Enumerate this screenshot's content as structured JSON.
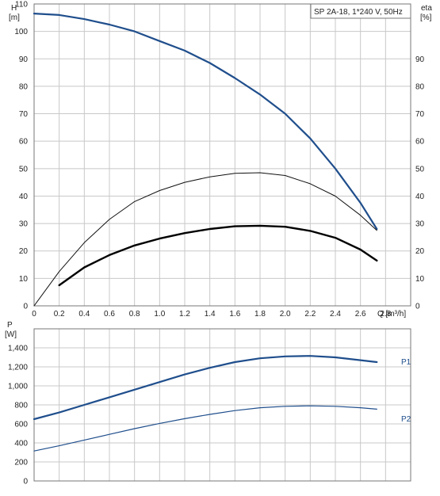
{
  "chart_data": [
    {
      "type": "line",
      "title": "SP 2A-18, 1*240 V, 50Hz",
      "grid": true,
      "ylabel_left": "H",
      "ylabel_left_unit": "[m]",
      "ylabel_right": "eta",
      "ylabel_right_unit": "[%]",
      "xlabel": "Q [m³/h]",
      "xlim": [
        0,
        3.0
      ],
      "ylim": [
        0,
        110
      ],
      "x_ticks": [
        "0",
        "0.2",
        "0.4",
        "0.6",
        "0.8",
        "1.0",
        "1.2",
        "1.4",
        "1.6",
        "1.8",
        "2.0",
        "2.2",
        "2.4",
        "2.6",
        "2.8"
      ],
      "y_ticks_left": [
        "0",
        "10",
        "20",
        "30",
        "40",
        "50",
        "60",
        "70",
        "80",
        "90",
        "100",
        "110"
      ],
      "y_ticks_right": [
        "0",
        "10",
        "20",
        "30",
        "40",
        "50",
        "60",
        "70",
        "80",
        "90"
      ],
      "series": [
        {
          "color": "#1f4e8c",
          "x": [
            0,
            0.2,
            0.4,
            0.6,
            0.8,
            1.0,
            1.2,
            1.4,
            1.6,
            1.8,
            2.0,
            2.2,
            2.4,
            2.6,
            2.73
          ],
          "values": [
            106.5,
            106,
            104.5,
            102.5,
            100,
            96.5,
            93,
            88.5,
            83,
            77,
            70,
            61,
            50,
            37.5,
            28
          ]
        },
        {
          "color": "#111111",
          "x": [
            0,
            0.2,
            0.4,
            0.6,
            0.8,
            1.0,
            1.2,
            1.4,
            1.6,
            1.8,
            2.0,
            2.2,
            2.4,
            2.6,
            2.73
          ],
          "values": [
            0,
            12.5,
            23,
            31.5,
            38,
            42,
            45,
            47,
            48.3,
            48.5,
            47.5,
            44.5,
            40,
            33,
            27.5
          ]
        },
        {
          "color": "#000000",
          "x": [
            0.2,
            0.4,
            0.6,
            0.8,
            1.0,
            1.2,
            1.4,
            1.6,
            1.8,
            2.0,
            2.2,
            2.4,
            2.6,
            2.73
          ],
          "values": [
            7.5,
            14,
            18.5,
            22,
            24.5,
            26.5,
            28,
            29,
            29.2,
            28.8,
            27.3,
            24.8,
            20.5,
            16.5
          ]
        }
      ]
    },
    {
      "type": "line",
      "grid": true,
      "ylabel": "P",
      "ylabel_unit": "[W]",
      "xlim": [
        0,
        3.0
      ],
      "ylim": [
        0,
        1600
      ],
      "x_ticks": [
        "0",
        "0.2",
        "0.4",
        "0.6",
        "0.8",
        "1.0",
        "1.2",
        "1.4",
        "1.6",
        "1.8",
        "2.0",
        "2.2",
        "2.4",
        "2.6",
        "2.8"
      ],
      "y_ticks": [
        "0",
        "200",
        "400",
        "600",
        "800",
        "1,000",
        "1,200",
        "1,400"
      ],
      "series": [
        {
          "name": "P1",
          "color": "#1f4e8c",
          "x": [
            0,
            0.2,
            0.4,
            0.6,
            0.8,
            1.0,
            1.2,
            1.4,
            1.6,
            1.8,
            2.0,
            2.2,
            2.4,
            2.6,
            2.73
          ],
          "values": [
            650,
            720,
            800,
            880,
            960,
            1040,
            1120,
            1190,
            1250,
            1290,
            1310,
            1315,
            1300,
            1270,
            1250
          ]
        },
        {
          "name": "P2",
          "color": "#1f4e8c",
          "x": [
            0,
            0.2,
            0.4,
            0.6,
            0.8,
            1.0,
            1.2,
            1.4,
            1.6,
            1.8,
            2.0,
            2.2,
            2.4,
            2.6,
            2.73
          ],
          "values": [
            315,
            370,
            430,
            490,
            550,
            605,
            655,
            700,
            740,
            770,
            785,
            790,
            785,
            770,
            755
          ]
        }
      ]
    }
  ]
}
